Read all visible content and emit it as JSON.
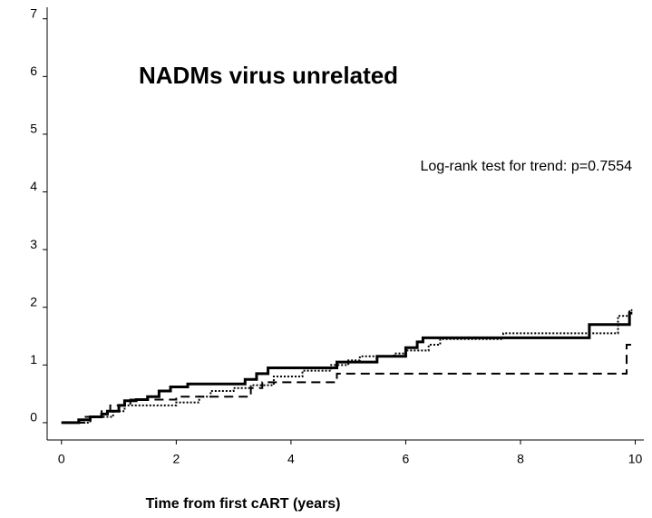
{
  "chart_data": {
    "type": "line",
    "drawstyle": "steps-post",
    "title": "NADMs virus unrelated",
    "annotation": "Log-rank test for trend: p=0.7554",
    "x_label": "Time from first cART (years)",
    "xlim": [
      -0.25,
      10.15
    ],
    "xticks": [
      0,
      2,
      4,
      6,
      8,
      10
    ],
    "ylim": [
      -0.3,
      7.2
    ],
    "yticks": [
      0,
      1,
      2,
      3,
      4,
      5,
      6,
      7
    ],
    "grid": false,
    "series": [
      {
        "color": "#000000",
        "dash": "solid",
        "width": 3,
        "x": [
          0,
          0.3,
          0.5,
          0.7,
          0.8,
          1.0,
          1.1,
          1.3,
          1.5,
          1.7,
          1.9,
          2.2,
          3.2,
          3.4,
          3.6,
          4.8,
          5.5,
          6.0,
          6.2,
          6.3,
          9.2,
          9.9,
          9.95
        ],
        "values": [
          0,
          0.05,
          0.1,
          0.15,
          0.2,
          0.3,
          0.38,
          0.4,
          0.45,
          0.55,
          0.62,
          0.67,
          0.75,
          0.85,
          0.95,
          1.05,
          1.15,
          1.3,
          1.4,
          1.47,
          1.7,
          1.9,
          1.9
        ]
      },
      {
        "color": "#000000",
        "dash": "dotted",
        "width": 2,
        "x": [
          0,
          0.5,
          0.9,
          1.1,
          2.0,
          2.4,
          2.6,
          3.0,
          3.3,
          3.7,
          4.2,
          4.7,
          5.0,
          5.2,
          5.8,
          6.0,
          6.4,
          6.6,
          7.7,
          9.7,
          9.9,
          9.95
        ],
        "values": [
          0,
          0.1,
          0.2,
          0.3,
          0.35,
          0.45,
          0.55,
          0.6,
          0.65,
          0.8,
          0.9,
          1.0,
          1.08,
          1.15,
          1.2,
          1.25,
          1.35,
          1.45,
          1.55,
          1.85,
          1.95,
          1.95
        ]
      },
      {
        "color": "#000000",
        "dash": "dashed",
        "width": 2,
        "x": [
          0,
          0.4,
          0.7,
          0.85,
          1.2,
          2.0,
          3.3,
          3.5,
          4.8,
          9.85,
          9.95
        ],
        "values": [
          0,
          0.1,
          0.2,
          0.3,
          0.4,
          0.45,
          0.6,
          0.7,
          0.85,
          1.35,
          1.35
        ]
      }
    ]
  }
}
